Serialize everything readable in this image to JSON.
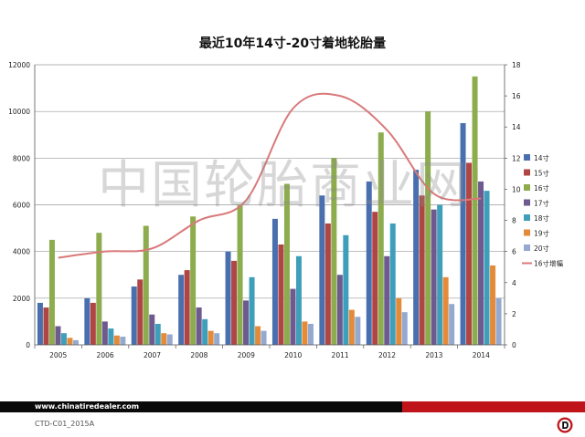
{
  "chart_data": {
    "type": "bar",
    "title": "最近10年14寸-20寸着地轮胎量",
    "categories": [
      "2005",
      "2006",
      "2007",
      "2008",
      "2009",
      "2010",
      "2011",
      "2012",
      "2013",
      "2014"
    ],
    "ylim": [
      0,
      12000
    ],
    "yticks": [
      "0",
      "2000",
      "4000",
      "6000",
      "8000",
      "10000",
      "12000"
    ],
    "y2lim": [
      0,
      18
    ],
    "y2ticks": [
      "0",
      "2",
      "4",
      "6",
      "8",
      "10",
      "12",
      "14",
      "16",
      "18"
    ],
    "grid": true,
    "legend_position": "right",
    "series": [
      {
        "name": "14寸",
        "color": "#4a6fae",
        "values": [
          1800,
          2000,
          2500,
          3000,
          4000,
          5400,
          6400,
          7000,
          7500,
          9500
        ]
      },
      {
        "name": "15寸",
        "color": "#b04643",
        "values": [
          1600,
          1800,
          2800,
          3200,
          3600,
          4300,
          5200,
          5700,
          6400,
          7800
        ]
      },
      {
        "name": "16寸",
        "color": "#8cac4d",
        "values": [
          4500,
          4800,
          5100,
          5500,
          6000,
          6900,
          8000,
          9100,
          10000,
          11500
        ]
      },
      {
        "name": "17寸",
        "color": "#6e5a8e",
        "values": [
          800,
          1000,
          1300,
          1600,
          1900,
          2400,
          3000,
          3800,
          5800,
          7000
        ]
      },
      {
        "name": "18寸",
        "color": "#3f9fba",
        "values": [
          500,
          700,
          900,
          1100,
          2900,
          3800,
          4700,
          5200,
          6000,
          6600
        ]
      },
      {
        "name": "19寸",
        "color": "#e48b3a",
        "values": [
          300,
          400,
          500,
          600,
          800,
          1000,
          1500,
          2000,
          2900,
          3400
        ]
      },
      {
        "name": "20寸",
        "color": "#93a9d0",
        "values": [
          200,
          350,
          450,
          500,
          600,
          900,
          1200,
          1400,
          1750,
          2000
        ]
      }
    ],
    "line_series": {
      "name": "16寸增幅",
      "axis": "secondary",
      "color": "#d9797a",
      "values": [
        5.6,
        6.0,
        6.2,
        8.0,
        9.3,
        15.2,
        16.0,
        13.8,
        9.7,
        9.4
      ]
    }
  },
  "watermark": "中国轮胎商业网",
  "footer": {
    "url": "www.chinatiredealer.com",
    "code": "CTD-C01_2015A",
    "accent_red": "#c0141b",
    "bar_black": "#0a0a0a"
  }
}
